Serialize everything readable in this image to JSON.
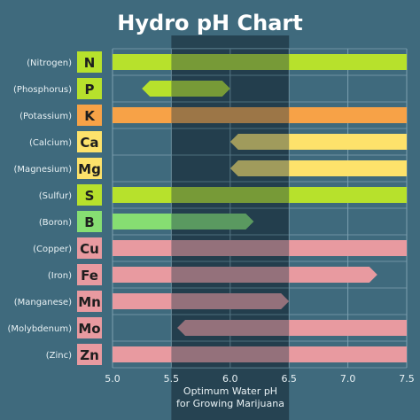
{
  "chart_data": {
    "type": "bar",
    "title": "Hydro pH Chart",
    "x_range": [
      5.0,
      7.5
    ],
    "x_ticks": [
      "5.0",
      "5.5",
      "6.0",
      "6.5",
      "7.0",
      "7.5"
    ],
    "optimum_range": [
      5.5,
      6.5
    ],
    "optimum_label": [
      "Optimum Water pH",
      "for Growing Marijuana"
    ],
    "rows": [
      {
        "name": "(Nitrogen)",
        "symbol": "N",
        "start": 5.0,
        "end": 7.5,
        "color": "#b7e12c",
        "box": "#b7e12c",
        "left_arrow": false,
        "right_arrow": false
      },
      {
        "name": "(Phosphorus)",
        "symbol": "P",
        "start": 5.25,
        "end": 6.0,
        "color": "#b7e12c",
        "box": "#b7e12c",
        "left_arrow": true,
        "right_arrow": true
      },
      {
        "name": "(Potassium)",
        "symbol": "K",
        "start": 5.0,
        "end": 7.5,
        "color": "#f7a247",
        "box": "#f7a247",
        "left_arrow": false,
        "right_arrow": false
      },
      {
        "name": "(Calcium)",
        "symbol": "Ca",
        "start": 6.0,
        "end": 7.5,
        "color": "#fde26b",
        "box": "#fde26b",
        "left_arrow": true,
        "right_arrow": false
      },
      {
        "name": "(Magnesium)",
        "symbol": "Mg",
        "start": 6.0,
        "end": 7.5,
        "color": "#fde26b",
        "box": "#fde26b",
        "left_arrow": true,
        "right_arrow": false
      },
      {
        "name": "(Sulfur)",
        "symbol": "S",
        "start": 5.0,
        "end": 7.5,
        "color": "#b7e12c",
        "box": "#b7e12c",
        "left_arrow": false,
        "right_arrow": false
      },
      {
        "name": "(Boron)",
        "symbol": "B",
        "start": 5.0,
        "end": 6.2,
        "color": "#86de72",
        "box": "#86de72",
        "left_arrow": false,
        "right_arrow": true
      },
      {
        "name": "(Copper)",
        "symbol": "Cu",
        "start": 5.0,
        "end": 7.5,
        "color": "#e89aa0",
        "box": "#e89aa0",
        "left_arrow": false,
        "right_arrow": false
      },
      {
        "name": "(Iron)",
        "symbol": "Fe",
        "start": 5.0,
        "end": 7.25,
        "color": "#e89aa0",
        "box": "#e89aa0",
        "left_arrow": false,
        "right_arrow": true
      },
      {
        "name": "(Manganese)",
        "symbol": "Mn",
        "start": 5.0,
        "end": 6.5,
        "color": "#e89aa0",
        "box": "#e89aa0",
        "left_arrow": false,
        "right_arrow": true
      },
      {
        "name": "(Molybdenum)",
        "symbol": "Mo",
        "start": 5.55,
        "end": 7.5,
        "color": "#e89aa0",
        "box": "#e89aa0",
        "left_arrow": true,
        "right_arrow": false
      },
      {
        "name": "(Zinc)",
        "symbol": "Zn",
        "start": 5.0,
        "end": 7.5,
        "color": "#e89aa0",
        "box": "#e89aa0",
        "left_arrow": false,
        "right_arrow": false
      }
    ]
  }
}
